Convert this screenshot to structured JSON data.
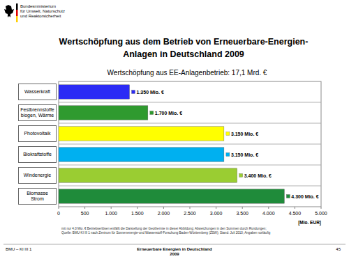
{
  "chart_data": {
    "type": "bar",
    "orientation": "horizontal",
    "title": [
      "Wertschöpfung aus dem Betrieb von Erneuerbare-Energien-",
      "Anlagen in Deutschland 2009"
    ],
    "subtitle": "Wertschöpfung aus EE-Anlagenbetrieb: 17,1 Mrd. €",
    "categories": [
      "Wasserkraft",
      "Festbrennstoffe biogen, Wärme",
      "Photovoltaik",
      "Biokraftstoffe",
      "Windenergie",
      "Biomasse Strom"
    ],
    "values": [
      1350,
      1700,
      3150,
      3150,
      3400,
      4300
    ],
    "value_labels": [
      "1.350 Mio. €",
      "1.700 Mio. €",
      "3.150 Mio. €",
      "3.150 Mio. €",
      "3.400 Mio. €",
      "4.300 Mio. €"
    ],
    "data_labels": true,
    "colors": [
      "#2b2bf5",
      "#2f9a2f",
      "#ffff00",
      "#00b0f0",
      "#9acd32",
      "#1f8b3a"
    ],
    "xlim": [
      0,
      5000
    ],
    "xticks": [
      0,
      500,
      {
        "value": 1000,
        "label": "1.000"
      },
      {
        "value": 1500,
        "label": "1.500"
      },
      {
        "value": 2000,
        "label": "2.000"
      },
      {
        "value": 2500,
        "label": "2.500"
      },
      {
        "value": 3000,
        "label": "3.000"
      },
      {
        "value": 3500,
        "label": "3.500"
      },
      {
        "value": 4000,
        "label": "4.000"
      },
      {
        "value": 4500,
        "label": "4.500"
      },
      {
        "value": 5000,
        "label": "5.000"
      }
    ],
    "x_label": "[Mio. EUR]",
    "grid": false,
    "notes": [
      "mit nur 4,0 Mio. € Betriebserlösen entfällt die Darstellung der Geothermie in dieser Abbildung; Abweichungen in den Summen durch Rundungen;",
      "Quelle: BMU-KI III 1 nach Zentrum für Sonnenenergie-und Wasserstoff-Forschung Baden-Württemberg (ZSW); Stand: Juli 2010; Angaben vorläufig"
    ]
  },
  "slide": {
    "logo": [
      "Bundesministerium",
      "für Umwelt, Naturschutz",
      "und Reaktorsicherheit"
    ],
    "footer_left": "BMU – KI III 1",
    "footer_center": [
      "Erneuerbare Energien in Deutschland",
      "2009"
    ],
    "page_number": "45"
  }
}
